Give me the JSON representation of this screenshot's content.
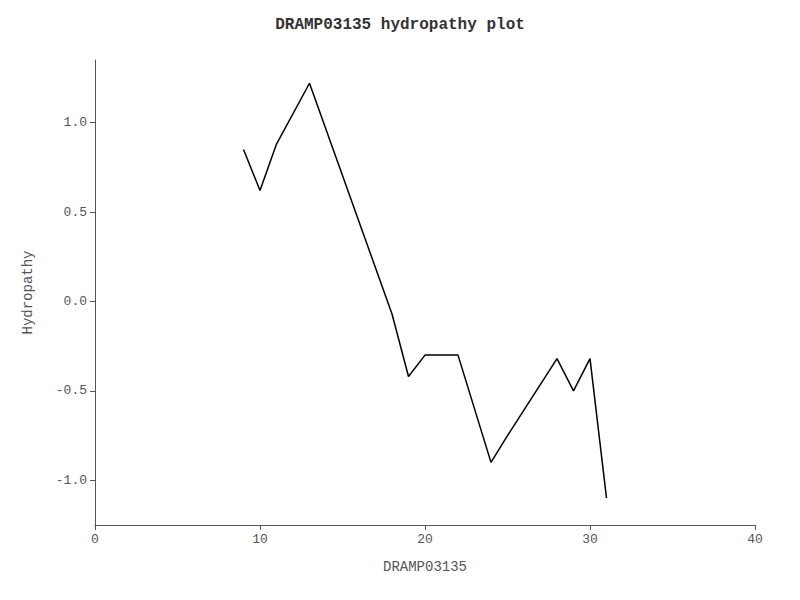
{
  "chart_data": {
    "type": "line",
    "title": "DRAMP03135 hydropathy plot",
    "xlabel": "DRAMP03135",
    "ylabel": "Hydropathy",
    "x": [
      9,
      10,
      11,
      13,
      18,
      19,
      20,
      22,
      24,
      25,
      28,
      29,
      30,
      31
    ],
    "values": [
      0.85,
      0.62,
      0.88,
      1.22,
      -0.07,
      -0.42,
      -0.3,
      -0.3,
      -0.9,
      -0.75,
      -0.32,
      -0.5,
      -0.32,
      -1.1
    ],
    "color": "#000000",
    "xlim": [
      0,
      40
    ],
    "xticks": [
      0,
      10,
      20,
      30,
      40
    ],
    "ylim": [
      -1.25,
      1.35
    ],
    "yticks": [
      {
        "value": -1.0,
        "label": "-1.0"
      },
      -0.5,
      {
        "value": 0.0,
        "label": "0.0"
      },
      0.5,
      {
        "value": 1.0,
        "label": "1.0"
      }
    ],
    "grid": false
  }
}
